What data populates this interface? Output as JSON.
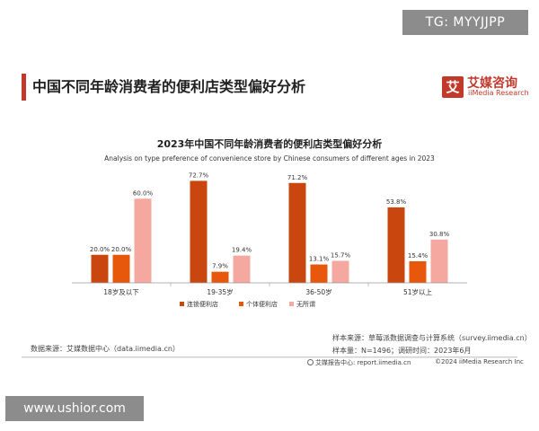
{
  "watermark_top": "TG: MYYJJPP",
  "watermark_bottom": "www.ushior.com",
  "page_title": "中国不同年龄消费者的便利店类型偏好分析",
  "logo": {
    "cn": "艾媒咨询",
    "en": "iiMedia Research",
    "mark": "艾"
  },
  "chart_data": {
    "type": "bar",
    "title": "2023年中国不同年龄消费者的便利店类型偏好分析",
    "subtitle": "Analysis on type preference of convenience store by Chinese consumers of different ages in 2023",
    "categories": [
      "18岁及以下",
      "19-35岁",
      "36-50岁",
      "51岁以上"
    ],
    "series": [
      {
        "name": "连锁便利店",
        "values": [
          20.0,
          72.7,
          71.2,
          53.8
        ],
        "labels": [
          "20.0%",
          "72.7%",
          "71.2%",
          "53.8%"
        ],
        "color": "#c9470f"
      },
      {
        "name": "个体便利店",
        "values": [
          20.0,
          7.9,
          13.1,
          15.4
        ],
        "labels": [
          "20.0%",
          "7.9%",
          "13.1%",
          "15.4%"
        ],
        "color": "#e8580c"
      },
      {
        "name": "无所谓",
        "values": [
          60.0,
          19.4,
          15.7,
          30.8
        ],
        "labels": [
          "60.0%",
          "19.4%",
          "15.7%",
          "30.8%"
        ],
        "color": "#f5a8a0"
      }
    ],
    "ylim": [
      0,
      80
    ],
    "grid": false,
    "legend": "bottom"
  },
  "footer": {
    "source": "数据来源：艾媒数据中心（data.iimedia.cn）",
    "sample_source": "样本来源：草莓派数据调查与计算系统（survey.iimedia.cn）",
    "sample_info": "样本量：N=1496；调研时间：2023年6月",
    "report": "艾媒报告中心: report.iimedia.cn",
    "copyright": "©2024 iiMedia Research Inc"
  }
}
